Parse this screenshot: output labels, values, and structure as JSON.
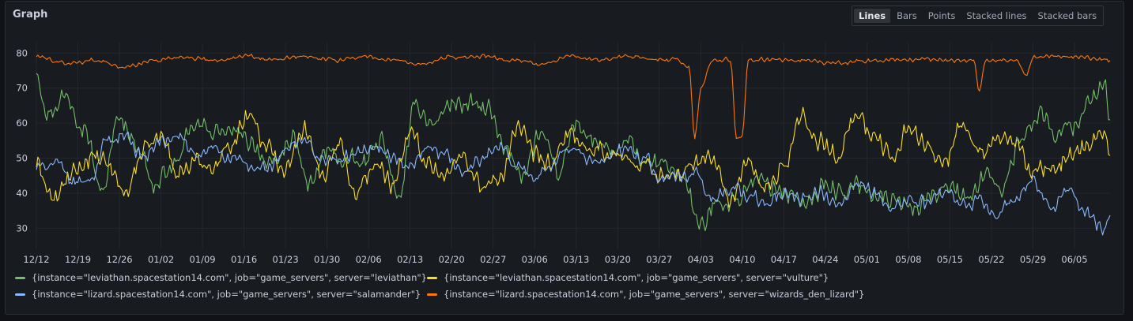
{
  "panel": {
    "title": "Graph"
  },
  "view_switch": {
    "options": [
      "Lines",
      "Bars",
      "Points",
      "Stacked lines",
      "Stacked bars"
    ],
    "selected": "Lines"
  },
  "chart_data": {
    "type": "line",
    "title": "Graph",
    "x_ticks": [
      "12/12",
      "12/19",
      "12/26",
      "01/02",
      "01/09",
      "01/16",
      "01/23",
      "01/30",
      "02/06",
      "02/13",
      "02/20",
      "02/27",
      "03/06",
      "03/13",
      "03/20",
      "03/27",
      "04/03",
      "04/10",
      "04/17",
      "04/24",
      "05/01",
      "05/08",
      "05/15",
      "05/22",
      "05/29",
      "06/05"
    ],
    "y_ticks": [
      30,
      40,
      50,
      60,
      70,
      80
    ],
    "ylim": [
      24,
      83
    ],
    "x_start_label": "12/12",
    "days_per_tick": 7,
    "x_range_days": [
      0,
      181
    ],
    "grid": true,
    "legend_position": "bottom",
    "series": [
      {
        "name": "{instance=\"leviathan.spacestation14.com\", job=\"game_servers\", server=\"leviathan\"}",
        "color": "#73bf69",
        "anchors": [
          [
            0,
            75
          ],
          [
            2,
            63
          ],
          [
            5,
            68
          ],
          [
            8,
            60
          ],
          [
            11,
            40
          ],
          [
            14,
            62
          ],
          [
            17,
            54
          ],
          [
            20,
            42
          ],
          [
            23,
            48
          ],
          [
            27,
            59
          ],
          [
            30,
            58
          ],
          [
            33,
            57
          ],
          [
            36,
            55
          ],
          [
            40,
            47
          ],
          [
            43,
            56
          ],
          [
            46,
            42
          ],
          [
            49,
            52
          ],
          [
            52,
            49
          ],
          [
            55,
            48
          ],
          [
            58,
            56
          ],
          [
            61,
            38
          ],
          [
            64,
            65
          ],
          [
            67,
            60
          ],
          [
            70,
            66
          ],
          [
            73,
            65
          ],
          [
            76,
            64
          ],
          [
            79,
            52
          ],
          [
            82,
            46
          ],
          [
            85,
            57
          ],
          [
            88,
            45
          ],
          [
            91,
            60
          ],
          [
            94,
            55
          ],
          [
            97,
            51
          ],
          [
            100,
            54
          ],
          [
            103,
            48
          ],
          [
            106,
            48
          ],
          [
            109,
            45
          ],
          [
            112,
            30
          ],
          [
            115,
            38
          ],
          [
            118,
            38
          ],
          [
            121,
            44
          ],
          [
            124,
            42
          ],
          [
            127,
            40
          ],
          [
            130,
            36
          ],
          [
            133,
            43
          ],
          [
            136,
            40
          ],
          [
            139,
            42
          ],
          [
            142,
            40
          ],
          [
            145,
            38
          ],
          [
            148,
            35
          ],
          [
            151,
            40
          ],
          [
            154,
            43
          ],
          [
            157,
            38
          ],
          [
            160,
            45
          ],
          [
            163,
            42
          ],
          [
            166,
            56
          ],
          [
            169,
            63
          ],
          [
            172,
            57
          ],
          [
            175,
            60
          ],
          [
            178,
            68
          ],
          [
            180,
            71
          ],
          [
            181,
            59
          ]
        ],
        "noise": 3.5
      },
      {
        "name": "{instance=\"leviathan.spacestation14.com\", job=\"game_servers\", server=\"vulture\"}",
        "color": "#fade2a",
        "anchors": [
          [
            0,
            48
          ],
          [
            3,
            38
          ],
          [
            6,
            45
          ],
          [
            9,
            50
          ],
          [
            12,
            48
          ],
          [
            15,
            40
          ],
          [
            18,
            52
          ],
          [
            21,
            56
          ],
          [
            24,
            46
          ],
          [
            27,
            49
          ],
          [
            30,
            48
          ],
          [
            33,
            55
          ],
          [
            36,
            63
          ],
          [
            39,
            52
          ],
          [
            42,
            48
          ],
          [
            45,
            59
          ],
          [
            48,
            45
          ],
          [
            51,
            55
          ],
          [
            54,
            40
          ],
          [
            57,
            48
          ],
          [
            60,
            43
          ],
          [
            63,
            57
          ],
          [
            66,
            49
          ],
          [
            69,
            45
          ],
          [
            72,
            51
          ],
          [
            75,
            42
          ],
          [
            78,
            43
          ],
          [
            81,
            59
          ],
          [
            84,
            50
          ],
          [
            87,
            48
          ],
          [
            90,
            58
          ],
          [
            93,
            51
          ],
          [
            96,
            52
          ],
          [
            99,
            50
          ],
          [
            102,
            48
          ],
          [
            105,
            46
          ],
          [
            108,
            44
          ],
          [
            111,
            49
          ],
          [
            114,
            50
          ],
          [
            117,
            38
          ],
          [
            120,
            48
          ],
          [
            123,
            41
          ],
          [
            126,
            48
          ],
          [
            129,
            62
          ],
          [
            132,
            55
          ],
          [
            135,
            51
          ],
          [
            138,
            62
          ],
          [
            141,
            56
          ],
          [
            144,
            51
          ],
          [
            147,
            59
          ],
          [
            150,
            54
          ],
          [
            153,
            48
          ],
          [
            156,
            60
          ],
          [
            159,
            52
          ],
          [
            162,
            56
          ],
          [
            165,
            54
          ],
          [
            168,
            46
          ],
          [
            171,
            46
          ],
          [
            174,
            51
          ],
          [
            177,
            54
          ],
          [
            180,
            58
          ],
          [
            181,
            53
          ]
        ],
        "noise": 3.5
      },
      {
        "name": "{instance=\"lizard.spacestation14.com\", job=\"game_servers\", server=\"salamander\"}",
        "color": "#8ab8ff",
        "anchors": [
          [
            0,
            47
          ],
          [
            3,
            49
          ],
          [
            6,
            43
          ],
          [
            9,
            44
          ],
          [
            12,
            55
          ],
          [
            15,
            57
          ],
          [
            18,
            50
          ],
          [
            21,
            55
          ],
          [
            24,
            56
          ],
          [
            27,
            50
          ],
          [
            30,
            53
          ],
          [
            33,
            50
          ],
          [
            36,
            47
          ],
          [
            39,
            47
          ],
          [
            42,
            52
          ],
          [
            45,
            55
          ],
          [
            48,
            50
          ],
          [
            51,
            49
          ],
          [
            54,
            51
          ],
          [
            57,
            54
          ],
          [
            60,
            50
          ],
          [
            63,
            47
          ],
          [
            66,
            52
          ],
          [
            69,
            50
          ],
          [
            72,
            46
          ],
          [
            75,
            50
          ],
          [
            78,
            53
          ],
          [
            81,
            47
          ],
          [
            84,
            45
          ],
          [
            87,
            49
          ],
          [
            90,
            53
          ],
          [
            93,
            50
          ],
          [
            96,
            50
          ],
          [
            99,
            52
          ],
          [
            102,
            51
          ],
          [
            105,
            45
          ],
          [
            108,
            44
          ],
          [
            111,
            45
          ],
          [
            114,
            38
          ],
          [
            117,
            42
          ],
          [
            120,
            39
          ],
          [
            123,
            37
          ],
          [
            126,
            40
          ],
          [
            129,
            38
          ],
          [
            132,
            40
          ],
          [
            135,
            36
          ],
          [
            138,
            42
          ],
          [
            141,
            40
          ],
          [
            144,
            36
          ],
          [
            147,
            38
          ],
          [
            150,
            37
          ],
          [
            153,
            40
          ],
          [
            156,
            36
          ],
          [
            159,
            38
          ],
          [
            162,
            34
          ],
          [
            165,
            38
          ],
          [
            168,
            43
          ],
          [
            171,
            36
          ],
          [
            174,
            41
          ],
          [
            177,
            34
          ],
          [
            180,
            30
          ],
          [
            181,
            34
          ]
        ],
        "noise": 2.5
      },
      {
        "name": "{instance=\"lizard.spacestation14.com\", job=\"game_servers\", server=\"wizards_den_lizard\"}",
        "color": "#ff780a",
        "anchors": [
          [
            0,
            79
          ],
          [
            5,
            77
          ],
          [
            10,
            78
          ],
          [
            15,
            76
          ],
          [
            20,
            78
          ],
          [
            25,
            79
          ],
          [
            30,
            78
          ],
          [
            35,
            79
          ],
          [
            40,
            78
          ],
          [
            45,
            79
          ],
          [
            50,
            78
          ],
          [
            55,
            79
          ],
          [
            60,
            78
          ],
          [
            65,
            77
          ],
          [
            70,
            79
          ],
          [
            75,
            79
          ],
          [
            80,
            78
          ],
          [
            85,
            77
          ],
          [
            90,
            79
          ],
          [
            95,
            78
          ],
          [
            100,
            79
          ],
          [
            105,
            78
          ],
          [
            108,
            78
          ],
          [
            110,
            76
          ],
          [
            111,
            56
          ],
          [
            112,
            70
          ],
          [
            114,
            78
          ],
          [
            117,
            78
          ],
          [
            118,
            56
          ],
          [
            119,
            56
          ],
          [
            120,
            78
          ],
          [
            125,
            78
          ],
          [
            130,
            78
          ],
          [
            135,
            77
          ],
          [
            140,
            78
          ],
          [
            145,
            78
          ],
          [
            150,
            78
          ],
          [
            155,
            78
          ],
          [
            158,
            78
          ],
          [
            159,
            69
          ],
          [
            160,
            78
          ],
          [
            165,
            78
          ],
          [
            167,
            74
          ],
          [
            168,
            79
          ],
          [
            172,
            79
          ],
          [
            176,
            79
          ],
          [
            181,
            78
          ]
        ],
        "noise": 0.8
      }
    ]
  }
}
